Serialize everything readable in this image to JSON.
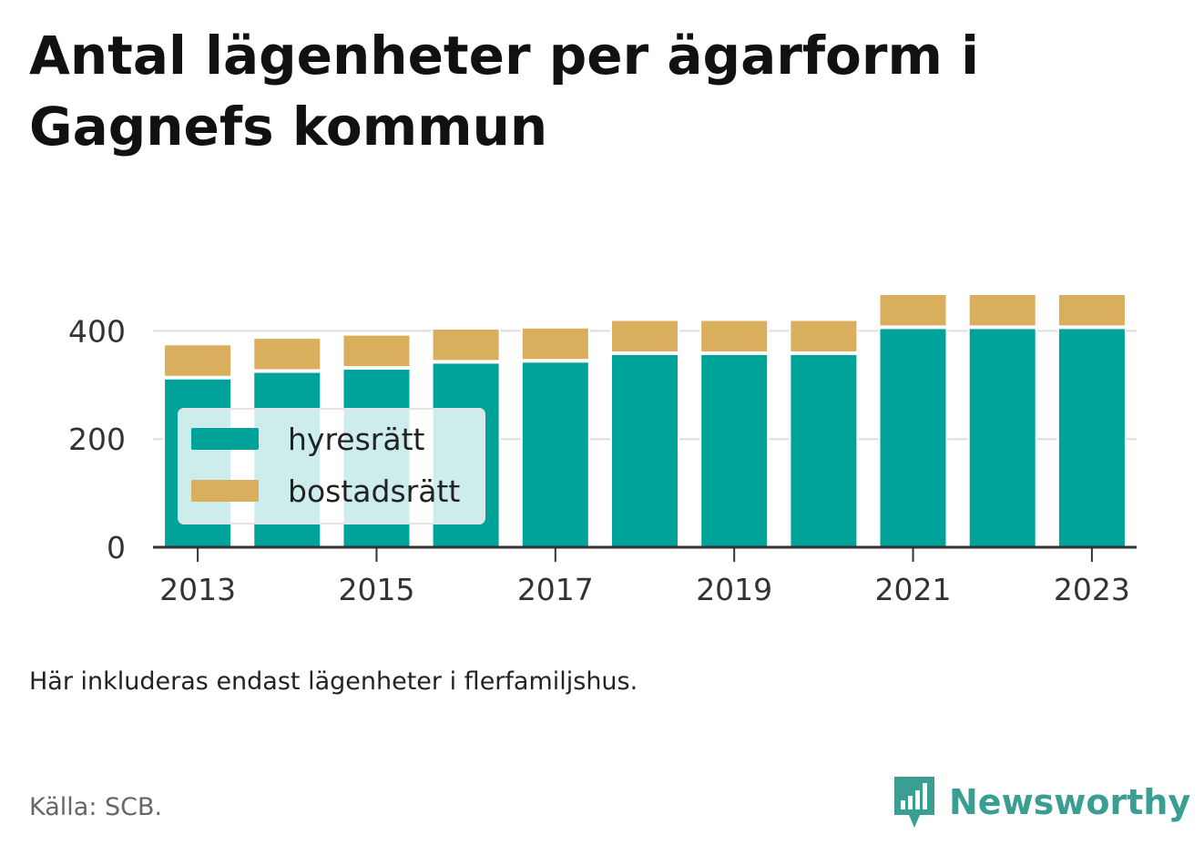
{
  "title": "Antal lägenheter per ägarform i Gagnefs kommun",
  "note": "Här inkluderas endast lägenheter i flerfamiljshus.",
  "source": "Källa: SCB.",
  "brand": {
    "name": "Newsworthy",
    "icon": "newsworthy-logo-icon",
    "color": "#3a9e93"
  },
  "chart_data": {
    "type": "bar",
    "stacked": true,
    "categories": [
      "2013",
      "2014",
      "2015",
      "2016",
      "2017",
      "2018",
      "2019",
      "2020",
      "2021",
      "2022",
      "2023"
    ],
    "x_tick_labels": [
      "2013",
      "2015",
      "2017",
      "2019",
      "2021",
      "2023"
    ],
    "series": [
      {
        "name": "hyresrätt",
        "color": "#00a39a",
        "values": [
          312,
          324,
          330,
          341,
          343,
          357,
          357,
          357,
          405,
          405,
          405
        ]
      },
      {
        "name": "bostadsrätt",
        "color": "#d9ae5c",
        "values": [
          63,
          63,
          63,
          63,
          63,
          63,
          63,
          63,
          63,
          63,
          63
        ]
      }
    ],
    "y_ticks": [
      0,
      200,
      400
    ],
    "ylim": [
      0,
      500
    ],
    "grid": true,
    "legend_position": "inside-left"
  }
}
